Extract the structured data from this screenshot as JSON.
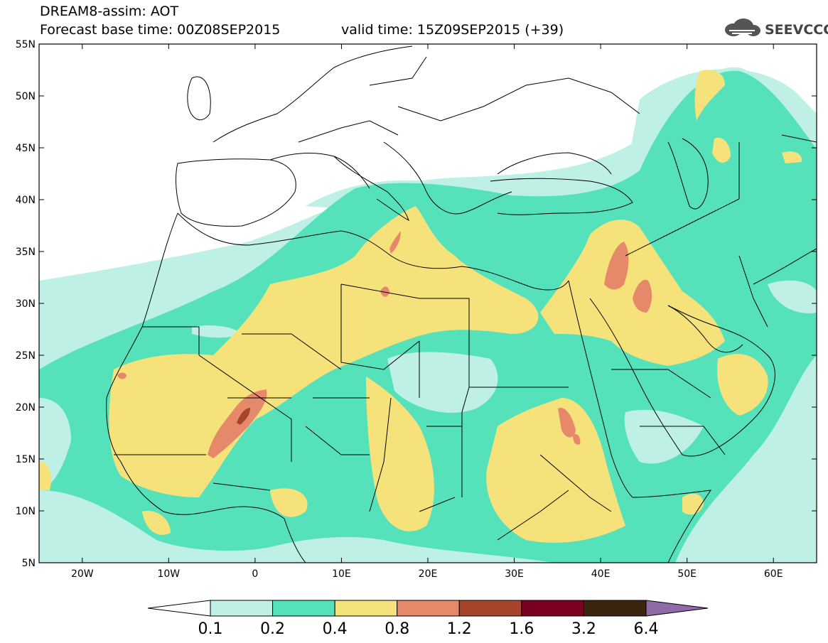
{
  "title": {
    "model": "DREAM8-assim: AOT",
    "base": "Forecast base time: 00Z08SEP2015",
    "valid": "valid time: 15Z09SEP2015 (+39)"
  },
  "logo": {
    "text": "SEEVCCC",
    "icon": "cloud-icon"
  },
  "map": {
    "lon_range": [
      -25,
      65
    ],
    "lat_range": [
      5,
      55
    ],
    "lat_ticks": [
      {
        "value": 55,
        "label": "55N"
      },
      {
        "value": 50,
        "label": "50N"
      },
      {
        "value": 45,
        "label": "45N"
      },
      {
        "value": 40,
        "label": "40N"
      },
      {
        "value": 35,
        "label": "35N"
      },
      {
        "value": 30,
        "label": "30N"
      },
      {
        "value": 25,
        "label": "25N"
      },
      {
        "value": 20,
        "label": "20N"
      },
      {
        "value": 15,
        "label": "15N"
      },
      {
        "value": 10,
        "label": "10N"
      },
      {
        "value": 5,
        "label": "5N"
      }
    ],
    "lon_ticks": [
      {
        "value": -20,
        "label": "20W"
      },
      {
        "value": -10,
        "label": "10W"
      },
      {
        "value": 0,
        "label": "0"
      },
      {
        "value": 10,
        "label": "10E"
      },
      {
        "value": 20,
        "label": "20E"
      },
      {
        "value": 30,
        "label": "30E"
      },
      {
        "value": 40,
        "label": "40E"
      },
      {
        "value": 50,
        "label": "50E"
      },
      {
        "value": 60,
        "label": "60E"
      }
    ]
  },
  "colorbar": {
    "levels": [
      "0.1",
      "0.2",
      "0.4",
      "0.8",
      "1.2",
      "1.6",
      "3.2",
      "6.4"
    ],
    "colors": [
      "#ffffff",
      "#bff0e6",
      "#55e1b9",
      "#f6e27a",
      "#e6896b",
      "#a9442c",
      "#7b0021",
      "#3b2410",
      "#8f6ca8"
    ]
  }
}
